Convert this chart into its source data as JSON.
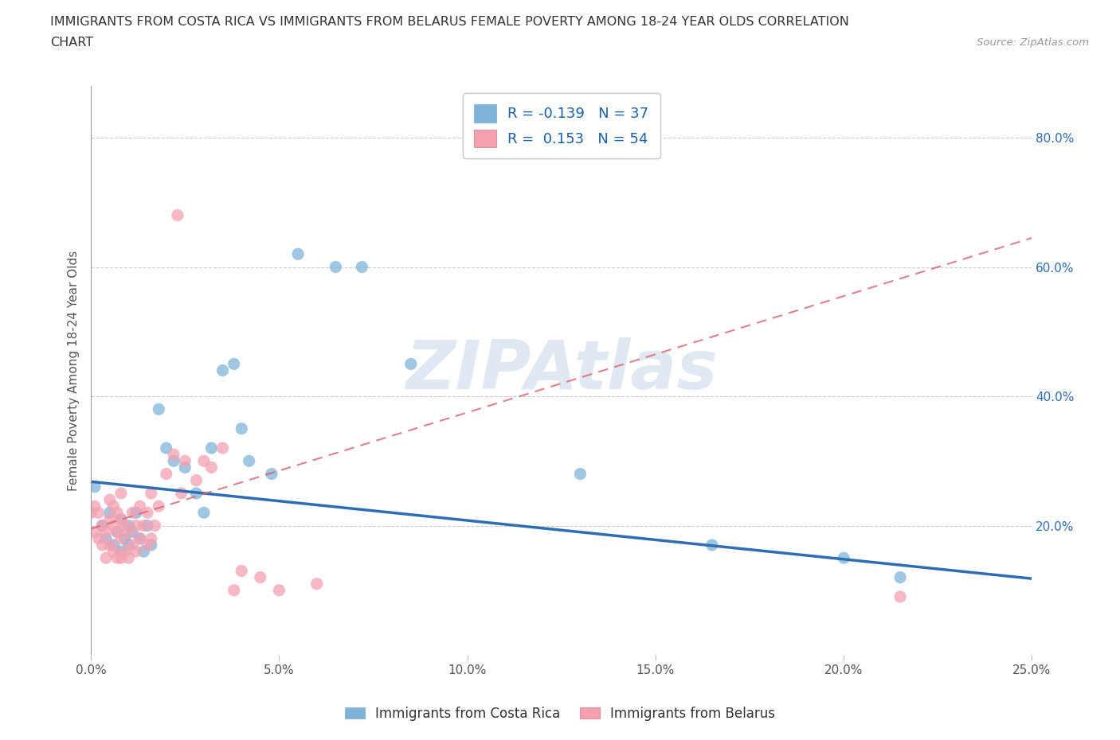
{
  "title_line1": "IMMIGRANTS FROM COSTA RICA VS IMMIGRANTS FROM BELARUS FEMALE POVERTY AMONG 18-24 YEAR OLDS CORRELATION",
  "title_line2": "CHART",
  "source": "Source: ZipAtlas.com",
  "ylabel": "Female Poverty Among 18-24 Year Olds",
  "xlim": [
    0.0,
    0.25
  ],
  "ylim": [
    0.0,
    0.88
  ],
  "xticks": [
    0.0,
    0.05,
    0.1,
    0.15,
    0.2,
    0.25
  ],
  "yticks_right": [
    0.2,
    0.4,
    0.6,
    0.8
  ],
  "costa_rica_scatter_color": "#7fb3d9",
  "belarus_scatter_color": "#f4a0b0",
  "costa_rica_line_color": "#2e6db4",
  "belarus_line_color": "#d96070",
  "R_costa_rica": -0.139,
  "N_costa_rica": 37,
  "R_belarus": 0.153,
  "N_belarus": 54,
  "legend_labels": [
    "Immigrants from Costa Rica",
    "Immigrants from Belarus"
  ],
  "watermark": "ZIPAtlas",
  "costa_rica_x": [
    0.001,
    0.003,
    0.004,
    0.005,
    0.006,
    0.007,
    0.008,
    0.008,
    0.009,
    0.01,
    0.01,
    0.011,
    0.012,
    0.013,
    0.014,
    0.015,
    0.016,
    0.018,
    0.02,
    0.022,
    0.025,
    0.028,
    0.03,
    0.032,
    0.035,
    0.038,
    0.04,
    0.042,
    0.048,
    0.055,
    0.065,
    0.072,
    0.085,
    0.13,
    0.165,
    0.2,
    0.215
  ],
  "costa_rica_y": [
    0.26,
    0.2,
    0.18,
    0.22,
    0.17,
    0.19,
    0.16,
    0.21,
    0.18,
    0.2,
    0.17,
    0.19,
    0.22,
    0.18,
    0.16,
    0.2,
    0.17,
    0.38,
    0.32,
    0.3,
    0.29,
    0.25,
    0.22,
    0.32,
    0.44,
    0.45,
    0.35,
    0.3,
    0.28,
    0.62,
    0.6,
    0.6,
    0.45,
    0.28,
    0.17,
    0.15,
    0.12
  ],
  "belarus_x": [
    0.0,
    0.001,
    0.001,
    0.002,
    0.002,
    0.003,
    0.003,
    0.004,
    0.004,
    0.005,
    0.005,
    0.005,
    0.006,
    0.006,
    0.006,
    0.007,
    0.007,
    0.007,
    0.008,
    0.008,
    0.008,
    0.008,
    0.009,
    0.009,
    0.01,
    0.01,
    0.011,
    0.011,
    0.012,
    0.012,
    0.013,
    0.013,
    0.014,
    0.015,
    0.015,
    0.016,
    0.016,
    0.017,
    0.018,
    0.02,
    0.022,
    0.023,
    0.024,
    0.025,
    0.028,
    0.03,
    0.032,
    0.035,
    0.038,
    0.04,
    0.045,
    0.05,
    0.06,
    0.215
  ],
  "belarus_y": [
    0.22,
    0.19,
    0.23,
    0.18,
    0.22,
    0.17,
    0.2,
    0.15,
    0.19,
    0.17,
    0.21,
    0.24,
    0.16,
    0.2,
    0.23,
    0.15,
    0.19,
    0.22,
    0.15,
    0.18,
    0.21,
    0.25,
    0.16,
    0.2,
    0.15,
    0.19,
    0.17,
    0.22,
    0.16,
    0.2,
    0.18,
    0.23,
    0.2,
    0.17,
    0.22,
    0.18,
    0.25,
    0.2,
    0.23,
    0.28,
    0.31,
    0.68,
    0.25,
    0.3,
    0.27,
    0.3,
    0.29,
    0.32,
    0.1,
    0.13,
    0.12,
    0.1,
    0.11,
    0.09
  ],
  "cr_line_x0": 0.0,
  "cr_line_y0": 0.268,
  "cr_line_x1": 0.25,
  "cr_line_y1": 0.118,
  "be_line_x0": 0.0,
  "be_line_y0": 0.195,
  "be_line_x1": 0.25,
  "be_line_y1": 0.645
}
